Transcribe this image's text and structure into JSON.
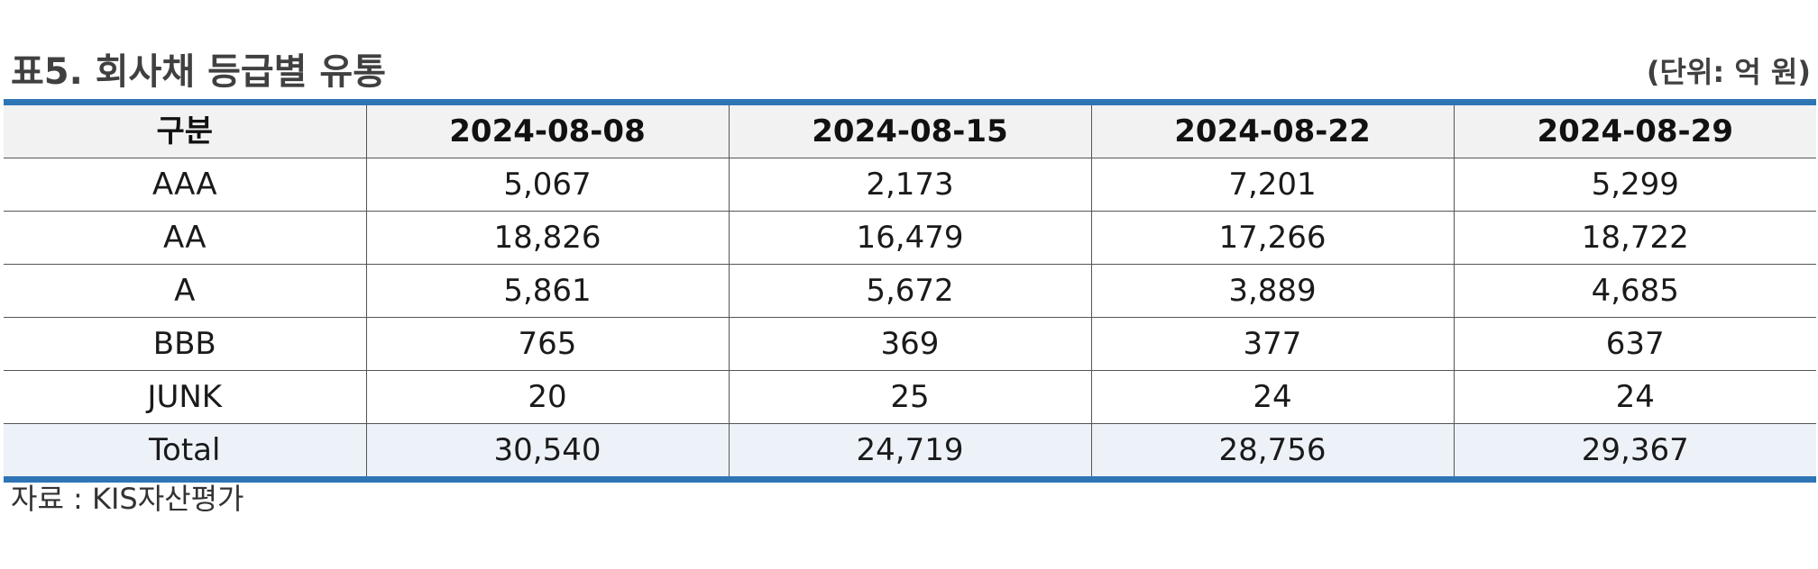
{
  "title": "표5. 회사채 등급별 유통",
  "unit": "(단위: 억 원)",
  "table": {
    "headers": [
      "구분",
      "2024-08-08",
      "2024-08-15",
      "2024-08-22",
      "2024-08-29"
    ],
    "rows": [
      {
        "label": "AAA",
        "values": [
          "5,067",
          "2,173",
          "7,201",
          "5,299"
        ]
      },
      {
        "label": "AA",
        "values": [
          "18,826",
          "16,479",
          "17,266",
          "18,722"
        ]
      },
      {
        "label": "A",
        "values": [
          "5,861",
          "5,672",
          "3,889",
          "4,685"
        ]
      },
      {
        "label": "BBB",
        "values": [
          "765",
          "369",
          "377",
          "637"
        ]
      },
      {
        "label": "JUNK",
        "values": [
          "20",
          "25",
          "24",
          "24"
        ]
      },
      {
        "label": "Total",
        "values": [
          "30,540",
          "24,719",
          "28,756",
          "29,367"
        ]
      }
    ]
  },
  "source": "자료 : KIS자산평가",
  "colors": {
    "rule": "#2e75b6",
    "header_bg": "#f2f2f2",
    "total_bg": "#edf2f9"
  }
}
